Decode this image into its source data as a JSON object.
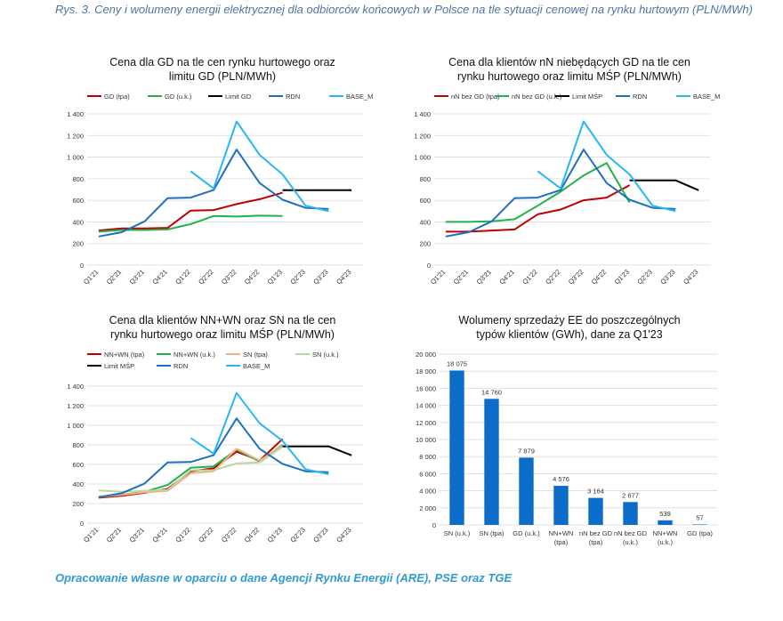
{
  "figure": {
    "caption": "Rys. 3. Ceny i wolumeny energii elektrycznej dla odbiorców końcowych w Polsce na tle sytuacji cenowej na rynku hurtowym (PLN/MWh)",
    "source": "Opracowanie własne w oparciu o dane Agencji Rynku Energii (ARE), PSE oraz TGE"
  },
  "colors": {
    "red": "#c00000",
    "green": "#22b14c",
    "black": "#000000",
    "darkblue": "#1f6fbf",
    "lightblue": "#29b6f6",
    "peach": "#f4b183",
    "lightgreen": "#b7d7a0",
    "bar": "#0b6cc9"
  },
  "chart_data": [
    {
      "type": "line",
      "title": [
        "Cena dla GD na tle cen rynku hurtowego oraz",
        "limitu GD (PLN/MWh)"
      ],
      "categories": [
        "Q1'21",
        "Q2'21",
        "Q3'21",
        "Q4'21",
        "Q1'22",
        "Q2'22",
        "Q3'22",
        "Q4'22",
        "Q1'23",
        "Q2'23",
        "Q3'23",
        "Q4'23"
      ],
      "ylim": [
        0,
        1400
      ],
      "yticks": [
        "0",
        "200",
        "400",
        "600",
        "800",
        "1 000",
        "1 200",
        "1 400"
      ],
      "grid": true,
      "legend_position": "top",
      "series": [
        {
          "name": "GD (tpa)",
          "color": "#c00000",
          "values": [
            320,
            340,
            340,
            345,
            505,
            510,
            565,
            610,
            670,
            null,
            null,
            null
          ]
        },
        {
          "name": "GD (u.k.)",
          "color": "#22b14c",
          "values": [
            310,
            325,
            325,
            330,
            380,
            455,
            450,
            458,
            455,
            null,
            null,
            null
          ]
        },
        {
          "name": "Limit GD",
          "color": "#000000",
          "values": [
            null,
            null,
            null,
            null,
            null,
            null,
            null,
            null,
            693,
            693,
            693,
            693
          ]
        },
        {
          "name": "RDN",
          "color": "#1f6fbf",
          "values": [
            265,
            305,
            405,
            620,
            625,
            695,
            1070,
            760,
            605,
            530,
            520,
            null
          ]
        },
        {
          "name": "BASE_M",
          "color": "#29b6f6",
          "values": [
            null,
            null,
            null,
            null,
            870,
            710,
            1330,
            1020,
            840,
            550,
            500,
            null
          ]
        }
      ]
    },
    {
      "type": "line",
      "title": [
        "Cena dla klientów nN niebędących GD na tle cen",
        "rynku hurtowego oraz limitu MŚP (PLN/MWh)"
      ],
      "categories": [
        "Q1'21",
        "Q2'21",
        "Q3'21",
        "Q4'21",
        "Q1'22",
        "Q2'22",
        "Q3'22",
        "Q4'22",
        "Q1'23",
        "Q2'23",
        "Q3'23",
        "Q4'23"
      ],
      "ylim": [
        0,
        1400
      ],
      "yticks": [
        "0",
        "200",
        "400",
        "600",
        "800",
        "1 000",
        "1 200",
        "1 400"
      ],
      "grid": true,
      "legend_position": "top",
      "series": [
        {
          "name": "nN bez GD (tpa)",
          "color": "#c00000",
          "values": [
            310,
            310,
            320,
            330,
            470,
            515,
            600,
            625,
            740,
            null,
            null,
            null
          ]
        },
        {
          "name": "nN bez GD (u.k.)",
          "color": "#22b14c",
          "values": [
            400,
            400,
            405,
            425,
            550,
            680,
            830,
            945,
            580,
            null,
            null,
            null
          ]
        },
        {
          "name": "Limit MŚP",
          "color": "#000000",
          "values": [
            null,
            null,
            null,
            null,
            null,
            null,
            null,
            null,
            785,
            785,
            785,
            693
          ]
        },
        {
          "name": "RDN",
          "color": "#1f6fbf",
          "values": [
            265,
            305,
            405,
            620,
            625,
            695,
            1070,
            760,
            605,
            530,
            520,
            null
          ]
        },
        {
          "name": "BASE_M",
          "color": "#29b6f6",
          "values": [
            null,
            null,
            null,
            null,
            870,
            710,
            1330,
            1020,
            840,
            550,
            500,
            null
          ]
        }
      ]
    },
    {
      "type": "line",
      "title": [
        "Cena dla klientów NN+WN oraz SN na tle cen",
        "rynku hurtowego oraz limitu MŚP (PLN/MWh)"
      ],
      "categories": [
        "Q1'21",
        "Q2'21",
        "Q3'21",
        "Q4'21",
        "Q1'22",
        "Q2'22",
        "Q3'22",
        "Q4'22",
        "Q1'23",
        "Q2'23",
        "Q3'23",
        "Q4'23"
      ],
      "ylim": [
        0,
        1400
      ],
      "yticks": [
        "0",
        "200",
        "400",
        "600",
        "800",
        "1 000",
        "1 200",
        "1 400"
      ],
      "grid": true,
      "legend_position": "top",
      "series": [
        {
          "name": "NN+WN (tpa)",
          "color": "#c00000",
          "values": [
            260,
            280,
            310,
            350,
            530,
            560,
            730,
            640,
            860,
            null,
            null,
            null
          ]
        },
        {
          "name": "NN+WN (u.k.)",
          "color": "#22b14c",
          "values": [
            265,
            290,
            320,
            390,
            565,
            580,
            750,
            630,
            800,
            null,
            null,
            null
          ]
        },
        {
          "name": "SN (tpa)",
          "color": "#f4b183",
          "values": [
            270,
            290,
            315,
            330,
            510,
            530,
            760,
            640,
            790,
            null,
            null,
            null
          ]
        },
        {
          "name": "SN (u.k.)",
          "color": "#b7d7a0",
          "values": [
            335,
            320,
            330,
            340,
            540,
            540,
            610,
            620,
            780,
            null,
            null,
            null
          ]
        },
        {
          "name": "Limit MŚP",
          "color": "#000000",
          "values": [
            null,
            null,
            null,
            null,
            null,
            null,
            null,
            null,
            785,
            785,
            785,
            693
          ]
        },
        {
          "name": "RDN",
          "color": "#1f6fbf",
          "values": [
            265,
            305,
            405,
            620,
            625,
            695,
            1070,
            760,
            605,
            530,
            520,
            null
          ]
        },
        {
          "name": "BASE_M",
          "color": "#29b6f6",
          "values": [
            null,
            null,
            null,
            null,
            870,
            710,
            1330,
            1020,
            840,
            550,
            500,
            null
          ]
        }
      ]
    },
    {
      "type": "bar",
      "title": [
        "Wolumeny sprzedaży EE do poszczególnych",
        "typów klientów (GWh), dane za Q1'23"
      ],
      "categories": [
        [
          "SN (u.k.)"
        ],
        [
          "SN (tpa)"
        ],
        [
          "GD (u.k.)"
        ],
        [
          "NN+WN",
          "(tpa)"
        ],
        [
          "nN bez GD",
          "(tpa)"
        ],
        [
          "nN bez GD",
          "(u.k.)"
        ],
        [
          "NN+WN",
          "(u.k.)"
        ],
        [
          "GD (tpa)"
        ]
      ],
      "values": [
        18075,
        14760,
        7879,
        4576,
        3164,
        2677,
        539,
        57
      ],
      "data_labels": [
        "18 075",
        "14 760",
        "7 879",
        "4 576",
        "3 164",
        "2 677",
        "539",
        "57"
      ],
      "ylim": [
        0,
        20000
      ],
      "yticks": [
        "0",
        "2 000",
        "4 000",
        "6 000",
        "8 000",
        "10 000",
        "12 000",
        "14 000",
        "16 000",
        "18 000",
        "20 000"
      ],
      "grid": true,
      "color": "#0b6cc9"
    }
  ]
}
